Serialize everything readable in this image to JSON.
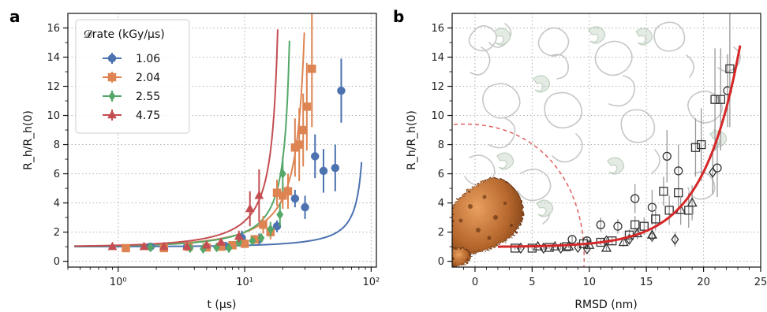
{
  "panel_a_letter": "a",
  "panel_b_letter": "b",
  "chart_data": [
    {
      "type": "scatter",
      "panel": "a",
      "xlabel": "t (µs)",
      "ylabel": "R_h/R_h(0)",
      "xscale": "log",
      "xlim": [
        0.4,
        110
      ],
      "ylim": [
        -0.4,
        17
      ],
      "x_tick_labels": [
        "10⁰",
        "10¹",
        "10²"
      ],
      "x_tick_values": [
        1,
        10,
        100
      ],
      "y_tick_labels": [
        "0",
        "2",
        "4",
        "6",
        "8",
        "10",
        "12",
        "14",
        "16"
      ],
      "grid": true,
      "legend": {
        "title": "𝓓rate (kGy/µs)",
        "placement": "top-left",
        "entries": [
          "1.06",
          "2.04",
          "2.55",
          "4.75"
        ]
      },
      "series": [
        {
          "name": "1.06",
          "color": "#4c72b0",
          "marker": "circle",
          "points": [
            {
              "x": 1.8,
              "y": 1.0,
              "err": 0.1
            },
            {
              "x": 3.5,
              "y": 1.0,
              "err": 0.1
            },
            {
              "x": 5.0,
              "y": 1.0,
              "err": 0.1
            },
            {
              "x": 7.0,
              "y": 1.05,
              "err": 0.1
            },
            {
              "x": 9.5,
              "y": 1.6,
              "err": 0.5
            },
            {
              "x": 13.0,
              "y": 1.5,
              "err": 0.4
            },
            {
              "x": 18.0,
              "y": 2.4,
              "err": 0.4
            },
            {
              "x": 25.0,
              "y": 4.3,
              "err": 0.6
            },
            {
              "x": 30.0,
              "y": 3.7,
              "err": 0.8
            },
            {
              "x": 36.0,
              "y": 7.2,
              "err": 1.5
            },
            {
              "x": 42.0,
              "y": 6.2,
              "err": 1.5
            },
            {
              "x": 52.0,
              "y": 6.4,
              "err": 1.6
            },
            {
              "x": 58.0,
              "y": 11.7,
              "err": 2.2
            }
          ],
          "fit": {
            "a": 0.008,
            "tc": 95.0,
            "xmin": 0.45,
            "xmax": 84
          }
        },
        {
          "name": "2.04",
          "color": "#dd8452",
          "marker": "square",
          "points": [
            {
              "x": 1.15,
              "y": 0.9,
              "err": 0.1
            },
            {
              "x": 2.3,
              "y": 0.9,
              "err": 0.1
            },
            {
              "x": 3.6,
              "y": 1.0,
              "err": 0.1
            },
            {
              "x": 5.0,
              "y": 0.95,
              "err": 0.1
            },
            {
              "x": 6.5,
              "y": 1.0,
              "err": 0.1
            },
            {
              "x": 8.0,
              "y": 1.1,
              "err": 0.2
            },
            {
              "x": 10.0,
              "y": 1.2,
              "err": 0.2
            },
            {
              "x": 12.0,
              "y": 1.5,
              "err": 0.3
            },
            {
              "x": 14.0,
              "y": 2.5,
              "err": 0.6
            },
            {
              "x": 16.0,
              "y": 2.0,
              "err": 0.5
            },
            {
              "x": 18.0,
              "y": 4.7,
              "err": 0.9
            },
            {
              "x": 20.0,
              "y": 4.5,
              "err": 0.9
            },
            {
              "x": 22.0,
              "y": 4.8,
              "err": 1.2
            },
            {
              "x": 25.0,
              "y": 7.8,
              "err": 2.0
            },
            {
              "x": 27.0,
              "y": 8.0,
              "err": 2.5
            },
            {
              "x": 29.0,
              "y": 9.0,
              "err": 2.5
            },
            {
              "x": 31.0,
              "y": 10.6,
              "err": 3.0
            },
            {
              "x": 34.0,
              "y": 13.2,
              "err": 4.0
            }
          ],
          "fit": {
            "a": 0.07,
            "tc": 34.5,
            "xmin": 0.45,
            "xmax": 34
          }
        },
        {
          "name": "2.55",
          "color": "#55a868",
          "marker": "diamond",
          "points": [
            {
              "x": 1.8,
              "y": 0.95,
              "err": 0.1
            },
            {
              "x": 3.7,
              "y": 0.9,
              "err": 0.1
            },
            {
              "x": 4.7,
              "y": 0.85,
              "err": 0.1
            },
            {
              "x": 6.0,
              "y": 0.95,
              "err": 0.1
            },
            {
              "x": 7.5,
              "y": 0.9,
              "err": 0.1
            },
            {
              "x": 9.0,
              "y": 1.3,
              "err": 0.2
            },
            {
              "x": 11.5,
              "y": 1.4,
              "err": 0.2
            },
            {
              "x": 13.5,
              "y": 1.6,
              "err": 0.3
            },
            {
              "x": 16.0,
              "y": 2.2,
              "err": 0.5
            },
            {
              "x": 19.0,
              "y": 3.2,
              "err": 0.8
            },
            {
              "x": 20.0,
              "y": 6.0,
              "err": 1.2
            }
          ],
          "fit": {
            "a": 0.06,
            "tc": 25.0,
            "xmin": 0.45,
            "xmax": 24.3
          }
        },
        {
          "name": "4.75",
          "color": "#c44e52",
          "marker": "triangle",
          "points": [
            {
              "x": 0.9,
              "y": 1.0,
              "err": 0.1
            },
            {
              "x": 1.6,
              "y": 1.0,
              "err": 0.1
            },
            {
              "x": 2.3,
              "y": 1.0,
              "err": 0.1
            },
            {
              "x": 3.5,
              "y": 1.0,
              "err": 0.1
            },
            {
              "x": 5.0,
              "y": 1.1,
              "err": 0.1
            },
            {
              "x": 6.5,
              "y": 1.3,
              "err": 0.2
            },
            {
              "x": 9.0,
              "y": 1.7,
              "err": 0.4
            },
            {
              "x": 11.0,
              "y": 3.6,
              "err": 1.2
            },
            {
              "x": 13.0,
              "y": 4.5,
              "err": 1.8
            }
          ],
          "fit": {
            "a": 0.09,
            "tc": 20.5,
            "xmin": 0.45,
            "xmax": 19.2
          }
        }
      ]
    },
    {
      "type": "scatter",
      "panel": "b",
      "xlabel": "RMSD (nm)",
      "ylabel": "R_h/R_h(0)",
      "xlim": [
        -2,
        25
      ],
      "ylim": [
        -0.4,
        17
      ],
      "x_tick_labels": [
        "0",
        "5",
        "10",
        "15",
        "20",
        "25"
      ],
      "y_tick_labels": [
        "0",
        "2",
        "4",
        "6",
        "8",
        "10",
        "12",
        "14",
        "16"
      ],
      "grid": true,
      "fit_color": "#d62728",
      "marker_color": "#333333",
      "series": [
        {
          "marker": "circle",
          "points": [
            {
              "x": 8.5,
              "y": 1.5,
              "err": 0.3
            },
            {
              "x": 9.8,
              "y": 1.4,
              "err": 0.3
            },
            {
              "x": 11.0,
              "y": 2.5,
              "err": 0.5
            },
            {
              "x": 12.5,
              "y": 2.4,
              "err": 0.5
            },
            {
              "x": 14.0,
              "y": 4.3,
              "err": 1.0
            },
            {
              "x": 15.5,
              "y": 3.7,
              "err": 1.2
            },
            {
              "x": 16.8,
              "y": 7.2,
              "err": 1.8
            },
            {
              "x": 17.8,
              "y": 6.2,
              "err": 1.8
            },
            {
              "x": 21.2,
              "y": 6.4,
              "err": 2.0
            },
            {
              "x": 22.1,
              "y": 11.7,
              "err": 2.5
            }
          ]
        },
        {
          "marker": "square",
          "points": [
            {
              "x": 3.5,
              "y": 0.9,
              "err": 0.1
            },
            {
              "x": 5.0,
              "y": 0.9,
              "err": 0.1
            },
            {
              "x": 6.5,
              "y": 0.95,
              "err": 0.1
            },
            {
              "x": 8.0,
              "y": 1.0,
              "err": 0.1
            },
            {
              "x": 9.5,
              "y": 1.2,
              "err": 0.2
            },
            {
              "x": 11.0,
              "y": 1.3,
              "err": 0.2
            },
            {
              "x": 12.0,
              "y": 1.4,
              "err": 0.3
            },
            {
              "x": 13.5,
              "y": 1.8,
              "err": 0.4
            },
            {
              "x": 14.0,
              "y": 2.5,
              "err": 0.6
            },
            {
              "x": 14.8,
              "y": 2.4,
              "err": 0.6
            },
            {
              "x": 15.8,
              "y": 2.9,
              "err": 0.8
            },
            {
              "x": 16.5,
              "y": 4.8,
              "err": 1.0
            },
            {
              "x": 17.0,
              "y": 3.5,
              "err": 1.0
            },
            {
              "x": 17.8,
              "y": 4.7,
              "err": 1.2
            },
            {
              "x": 18.7,
              "y": 3.5,
              "err": 1.2
            },
            {
              "x": 19.3,
              "y": 7.8,
              "err": 2.0
            },
            {
              "x": 19.8,
              "y": 8.0,
              "err": 2.5
            },
            {
              "x": 21.0,
              "y": 11.1,
              "err": 3.5
            },
            {
              "x": 21.5,
              "y": 11.1,
              "err": 3.5
            },
            {
              "x": 22.3,
              "y": 13.2,
              "err": 4.0
            }
          ]
        },
        {
          "marker": "diamond",
          "points": [
            {
              "x": 4.0,
              "y": 0.9,
              "err": 0.1
            },
            {
              "x": 6.0,
              "y": 0.9,
              "err": 0.1
            },
            {
              "x": 7.5,
              "y": 0.9,
              "err": 0.1
            },
            {
              "x": 9.0,
              "y": 0.95,
              "err": 0.1
            },
            {
              "x": 9.8,
              "y": 0.85,
              "err": 0.1
            },
            {
              "x": 11.5,
              "y": 1.4,
              "err": 0.2
            },
            {
              "x": 13.5,
              "y": 1.5,
              "err": 0.3
            },
            {
              "x": 15.5,
              "y": 1.7,
              "err": 0.4
            },
            {
              "x": 17.5,
              "y": 1.5,
              "err": 0.5
            },
            {
              "x": 20.8,
              "y": 6.1,
              "err": 1.5
            }
          ]
        },
        {
          "marker": "triangle",
          "points": [
            {
              "x": 5.5,
              "y": 1.0,
              "err": 0.1
            },
            {
              "x": 7.0,
              "y": 1.0,
              "err": 0.1
            },
            {
              "x": 8.2,
              "y": 1.0,
              "err": 0.1
            },
            {
              "x": 10.0,
              "y": 1.1,
              "err": 0.1
            },
            {
              "x": 11.5,
              "y": 0.9,
              "err": 0.2
            },
            {
              "x": 13.0,
              "y": 1.3,
              "err": 0.3
            },
            {
              "x": 14.2,
              "y": 1.9,
              "err": 0.4
            },
            {
              "x": 15.5,
              "y": 1.8,
              "err": 0.5
            },
            {
              "x": 18.0,
              "y": 3.5,
              "err": 1.0
            },
            {
              "x": 19.0,
              "y": 4.0,
              "err": 1.2
            }
          ]
        }
      ],
      "fit": {
        "xmin": 2.0,
        "xmax": 23.2,
        "y0": 1.0,
        "y_end": 14.8
      }
    }
  ]
}
